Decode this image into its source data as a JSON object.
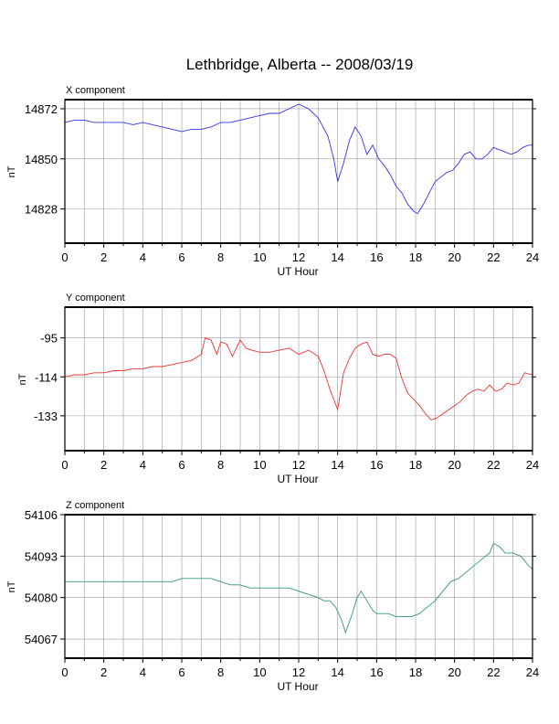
{
  "figure": {
    "title": "Lethbridge, Alberta -- 2008/03/19"
  },
  "chart_data": [
    {
      "type": "line",
      "panel_title": "X component",
      "xlabel": "UT Hour",
      "ylabel": "nT",
      "xlim": [
        0,
        24
      ],
      "ylim": [
        14813,
        14876
      ],
      "xticks": [
        "0",
        "2",
        "4",
        "6",
        "8",
        "10",
        "12",
        "14",
        "16",
        "18",
        "20",
        "22",
        "24"
      ],
      "yticks": [
        "14872",
        "14850",
        "14828"
      ],
      "ytick_values": [
        14872,
        14850,
        14828
      ],
      "grid": true,
      "color": "#3333ee",
      "x": [
        0,
        0.5,
        1,
        1.5,
        2,
        2.5,
        3,
        3.5,
        4,
        4.5,
        5,
        5.5,
        6,
        6.5,
        7,
        7.5,
        8,
        8.5,
        9,
        9.5,
        10,
        10.5,
        11,
        11.5,
        12,
        12.5,
        13,
        13.5,
        13.8,
        14,
        14.3,
        14.6,
        14.9,
        15.2,
        15.5,
        15.8,
        16.1,
        16.4,
        16.7,
        17,
        17.3,
        17.6,
        17.9,
        18.1,
        18.4,
        18.7,
        19,
        19.3,
        19.6,
        19.9,
        20.2,
        20.5,
        20.8,
        21.1,
        21.4,
        21.7,
        22,
        22.3,
        22.6,
        22.9,
        23.2,
        23.5,
        23.8,
        24
      ],
      "values": [
        14866,
        14867,
        14867,
        14866,
        14866,
        14866,
        14866,
        14865,
        14866,
        14865,
        14864,
        14863,
        14862,
        14863,
        14863,
        14864,
        14866,
        14866,
        14867,
        14868,
        14869,
        14870,
        14870,
        14872,
        14874,
        14872,
        14868,
        14860,
        14850,
        14840,
        14848,
        14858,
        14864,
        14860,
        14852,
        14856,
        14850,
        14847,
        14843,
        14838,
        14835,
        14830,
        14827,
        14826,
        14830,
        14835,
        14840,
        14842,
        14844,
        14845,
        14848,
        14852,
        14853,
        14850,
        14850,
        14852,
        14855,
        14854,
        14853,
        14852,
        14853,
        14855,
        14856,
        14856
      ]
    },
    {
      "type": "line",
      "panel_title": "Y component",
      "xlabel": "UT Hour",
      "ylabel": "nT",
      "xlim": [
        0,
        24
      ],
      "ylim": [
        -150,
        -80
      ],
      "xticks": [
        "0",
        "2",
        "4",
        "6",
        "8",
        "10",
        "12",
        "14",
        "16",
        "18",
        "20",
        "22",
        "24"
      ],
      "yticks": [
        "-95",
        "-114",
        "-133"
      ],
      "ytick_values": [
        -95,
        -114,
        -133
      ],
      "grid": true,
      "color": "#ee3333",
      "x": [
        0,
        0.5,
        1,
        1.5,
        2,
        2.5,
        3,
        3.5,
        4,
        4.5,
        5,
        5.5,
        6,
        6.5,
        7,
        7.2,
        7.5,
        7.8,
        8,
        8.3,
        8.6,
        9,
        9.3,
        9.6,
        10,
        10.5,
        11,
        11.5,
        12,
        12.5,
        13,
        13.3,
        13.6,
        14,
        14.3,
        14.6,
        14.9,
        15.2,
        15.5,
        15.8,
        16.1,
        16.4,
        16.7,
        17,
        17.3,
        17.6,
        17.9,
        18.2,
        18.5,
        18.8,
        19.1,
        19.4,
        19.7,
        20,
        20.3,
        20.6,
        20.9,
        21.2,
        21.5,
        21.8,
        22.1,
        22.4,
        22.7,
        23,
        23.3,
        23.6,
        24
      ],
      "values": [
        -114,
        -113,
        -113,
        -112,
        -112,
        -111,
        -111,
        -110,
        -110,
        -109,
        -109,
        -108,
        -107,
        -106,
        -103,
        -95,
        -96,
        -103,
        -97,
        -98,
        -104,
        -96,
        -100,
        -101,
        -102,
        -102,
        -101,
        -100,
        -103,
        -101,
        -104,
        -111,
        -120,
        -130,
        -112,
        -105,
        -100,
        -98,
        -97,
        -103,
        -104,
        -103,
        -103,
        -105,
        -115,
        -122,
        -125,
        -128,
        -132,
        -135,
        -134,
        -132,
        -130,
        -128,
        -126,
        -123,
        -121,
        -120,
        -121,
        -118,
        -121,
        -120,
        -117,
        -118,
        -117,
        -112,
        -113
      ]
    },
    {
      "type": "line",
      "panel_title": "Z component",
      "xlabel": "UT Hour",
      "ylabel": "nT",
      "xlim": [
        0,
        24
      ],
      "ylim": [
        54061,
        54106
      ],
      "xticks": [
        "0",
        "2",
        "4",
        "6",
        "8",
        "10",
        "12",
        "14",
        "16",
        "18",
        "20",
        "22",
        "24"
      ],
      "yticks": [
        "54106",
        "54093",
        "54080",
        "54067"
      ],
      "ytick_values": [
        54106,
        54093,
        54080,
        54067
      ],
      "grid": true,
      "color": "#339966",
      "x": [
        0,
        0.5,
        1,
        1.5,
        2,
        2.5,
        3,
        3.5,
        4,
        4.5,
        5,
        5.5,
        6,
        6.5,
        7,
        7.5,
        8,
        8.5,
        9,
        9.5,
        10,
        10.5,
        11,
        11.5,
        12,
        12.5,
        13,
        13.3,
        13.6,
        13.9,
        14.2,
        14.4,
        14.7,
        15,
        15.2,
        15.5,
        15.8,
        16,
        16.3,
        16.6,
        17,
        17.4,
        17.8,
        18.2,
        18.6,
        19,
        19.4,
        19.8,
        20.2,
        20.6,
        21,
        21.4,
        21.8,
        22,
        22.3,
        22.6,
        23,
        23.4,
        23.8,
        24
      ],
      "values": [
        54085,
        54085,
        54085,
        54085,
        54085,
        54085,
        54085,
        54085,
        54085,
        54085,
        54085,
        54085,
        54086,
        54086,
        54086,
        54086,
        54085,
        54084,
        54084,
        54083,
        54083,
        54083,
        54083,
        54083,
        54082,
        54081,
        54080,
        54079,
        54079,
        54077,
        54073,
        54069,
        54074,
        54080,
        54082,
        54079,
        54076,
        54075,
        54075,
        54075,
        54074,
        54074,
        54074,
        54075,
        54077,
        54079,
        54082,
        54085,
        54086,
        54088,
        54090,
        54092,
        54094,
        54097,
        54096,
        54094,
        54094,
        54093,
        54090,
        54089
      ]
    }
  ]
}
